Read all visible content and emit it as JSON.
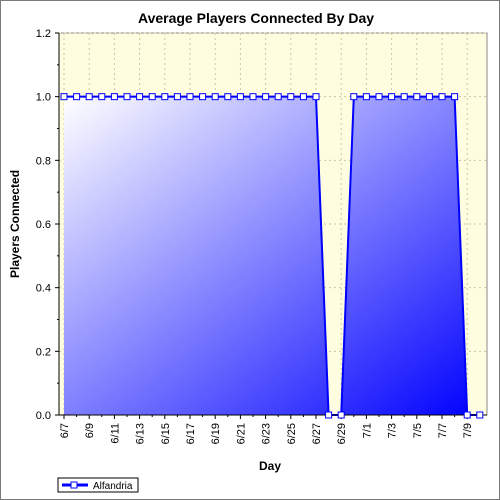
{
  "chart_data": {
    "type": "area",
    "title": "Average Players Connected By Day",
    "xlabel": "Day",
    "ylabel": "Players Connected",
    "ylim": [
      0,
      1.2
    ],
    "yticks": [
      "0.0",
      "0.2",
      "0.4",
      "0.6",
      "0.8",
      "1.0",
      "1.2"
    ],
    "ytick_values": [
      0,
      0.2,
      0.4,
      0.6,
      0.8,
      1.0,
      1.2
    ],
    "x": [
      "6/7",
      "6/8",
      "6/9",
      "6/10",
      "6/11",
      "6/12",
      "6/13",
      "6/14",
      "6/15",
      "6/16",
      "6/17",
      "6/18",
      "6/19",
      "6/20",
      "6/21",
      "6/22",
      "6/23",
      "6/24",
      "6/25",
      "6/26",
      "6/27",
      "6/28",
      "6/29",
      "6/30",
      "7/1",
      "7/2",
      "7/3",
      "7/4",
      "7/5",
      "7/6",
      "7/7",
      "7/8",
      "7/9",
      "7/10"
    ],
    "xtick_labels": [
      "6/7",
      "6/9",
      "6/11",
      "6/13",
      "6/15",
      "6/17",
      "6/19",
      "6/21",
      "6/23",
      "6/25",
      "6/27",
      "6/29",
      "7/1",
      "7/3",
      "7/5",
      "7/7",
      "7/9"
    ],
    "series": [
      {
        "name": "Alfandria",
        "values": [
          1,
          1,
          1,
          1,
          1,
          1,
          1,
          1,
          1,
          1,
          1,
          1,
          1,
          1,
          1,
          1,
          1,
          1,
          1,
          1,
          1,
          0,
          0,
          1,
          1,
          1,
          1,
          1,
          1,
          1,
          1,
          1,
          0,
          0
        ]
      }
    ],
    "grid": true,
    "legend_position": "bottom-left",
    "colors": {
      "plot_background": "#fffde0",
      "area_light": "#ffffff",
      "area_dark": "#0000ff",
      "line": "#0000ff",
      "marker_fill": "#ffffff",
      "grid": "#c8c8a0"
    }
  }
}
